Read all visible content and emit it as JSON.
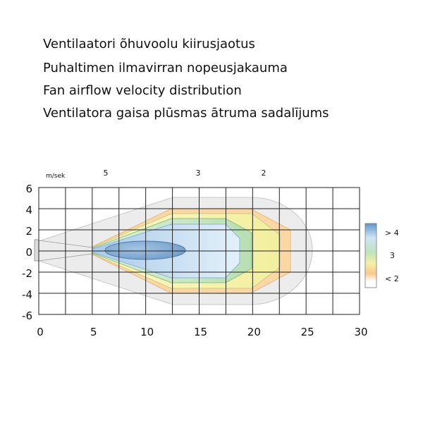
{
  "header": {
    "titles": [
      "Ventilaatori õhuvoolu kiirusjaotus",
      "Puhaltimen ilmavirran nopeusjakauma",
      "Fan airflow velocity distribution",
      "Ventilatora gaisa plūsmas ātruma sadalījums"
    ]
  },
  "diagram": {
    "unit_label": "m/sek",
    "zone_labels": [
      "5",
      "3",
      "2"
    ],
    "x_axis_labels": [
      "0",
      "5",
      "10",
      "15",
      "20",
      "25",
      "30"
    ],
    "y_axis_labels": [
      "6",
      "4",
      "2",
      "0",
      "-2",
      "-4",
      "-6"
    ],
    "legend_labels": [
      "> 4",
      "3",
      "< 2"
    ]
  }
}
